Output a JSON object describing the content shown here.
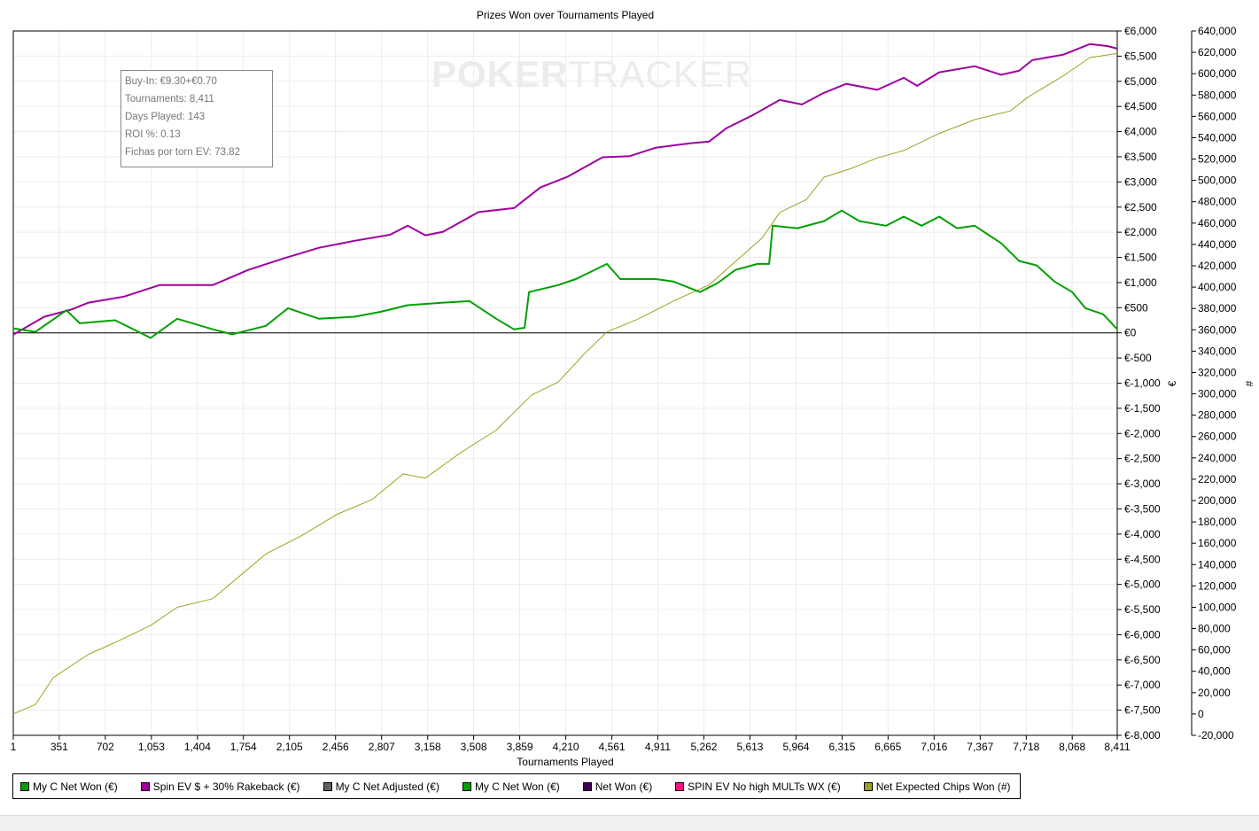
{
  "chart_data": {
    "type": "line",
    "title": "Prizes Won over Tournaments Played",
    "xlabel": "Tournaments Played",
    "ylabel_left": "€",
    "ylabel_right": "#",
    "xlim": [
      1,
      8411
    ],
    "ylim_left": [
      -8000,
      6000
    ],
    "ylim_right": [
      -20000,
      640000
    ],
    "grid": true,
    "legend_placement": "bottom",
    "x_ticks": [
      "1",
      "351",
      "702",
      "1,053",
      "1,404",
      "1,754",
      "2,105",
      "2,456",
      "2,807",
      "3,158",
      "3,508",
      "3,859",
      "4,210",
      "4,561",
      "4,911",
      "5,262",
      "5,613",
      "5,964",
      "6,315",
      "6,665",
      "7,016",
      "7,367",
      "7,718",
      "8,068",
      "8,411"
    ],
    "y_ticks_left": [
      "€6,000",
      "€5,500",
      "€5,000",
      "€4,500",
      "€4,000",
      "€3,500",
      "€3,000",
      "€2,500",
      "€2,000",
      "€1,500",
      "€1,000",
      "€500",
      "€0",
      "€-500",
      "€-1,000",
      "€-1,500",
      "€-2,000",
      "€-2,500",
      "€-3,000",
      "€-3,500",
      "€-4,000",
      "€-4,500",
      "€-5,000",
      "€-5,500",
      "€-6,000",
      "€-6,500",
      "€-7,000",
      "€-7,500",
      "€-8,000"
    ],
    "y_ticks_right": [
      "640,000",
      "620,000",
      "600,000",
      "580,000",
      "560,000",
      "540,000",
      "520,000",
      "500,000",
      "480,000",
      "460,000",
      "440,000",
      "420,000",
      "400,000",
      "380,000",
      "360,000",
      "340,000",
      "320,000",
      "300,000",
      "280,000",
      "260,000",
      "240,000",
      "220,000",
      "200,000",
      "180,000",
      "160,000",
      "140,000",
      "120,000",
      "100,000",
      "80,000",
      "60,000",
      "40,000",
      "20,000",
      "0",
      "-20,000"
    ],
    "series": [
      {
        "name": "My C Net Won (€)",
        "color": "#00a000",
        "axis": "left",
        "width": 2,
        "x": [
          1,
          170,
          406,
          507,
          777,
          1047,
          1250,
          1520,
          1668,
          1925,
          2094,
          2330,
          2600,
          2802,
          3005,
          3275,
          3477,
          3680,
          3815,
          3896,
          3930,
          4152,
          4287,
          4523,
          4625,
          4895,
          5030,
          5232,
          5367,
          5502,
          5671,
          5759,
          5786,
          5975,
          6177,
          6312,
          6447,
          6650,
          6785,
          6920,
          7055,
          7190,
          7325,
          7527,
          7663,
          7798,
          7933,
          8068,
          8169,
          8304,
          8411
        ],
        "y": [
          90,
          20,
          450,
          190,
          250,
          -100,
          280,
          70,
          -30,
          140,
          490,
          280,
          320,
          420,
          550,
          600,
          630,
          280,
          70,
          100,
          810,
          950,
          1070,
          1370,
          1070,
          1070,
          1020,
          810,
          990,
          1250,
          1370,
          1370,
          2130,
          2080,
          2220,
          2430,
          2220,
          2130,
          2310,
          2130,
          2310,
          2080,
          2130,
          1780,
          1430,
          1340,
          1020,
          810,
          490,
          370,
          70
        ]
      },
      {
        "name": "Spin EV $ + 30% Rakeback  (€)",
        "color": "#a000a0",
        "axis": "left",
        "width": 2,
        "x": [
          1,
          237,
          440,
          575,
          845,
          1115,
          1520,
          1790,
          2060,
          2330,
          2600,
          2870,
          3005,
          3140,
          3275,
          3545,
          3815,
          4017,
          4220,
          4490,
          4692,
          4895,
          5165,
          5300,
          5435,
          5637,
          5840,
          6009,
          6177,
          6347,
          6583,
          6785,
          6886,
          7055,
          7325,
          7527,
          7663,
          7764,
          8000,
          8202,
          8337,
          8411
        ],
        "y": [
          -35,
          320,
          460,
          600,
          720,
          950,
          950,
          1250,
          1480,
          1690,
          1830,
          1950,
          2130,
          1940,
          2010,
          2400,
          2480,
          2890,
          3100,
          3490,
          3510,
          3680,
          3770,
          3800,
          4070,
          4330,
          4630,
          4540,
          4770,
          4950,
          4830,
          5070,
          4910,
          5180,
          5300,
          5130,
          5210,
          5420,
          5530,
          5740,
          5700,
          5650
        ]
      },
      {
        "name": "My C Net Adjusted (€)",
        "color": "#606060",
        "axis": "left",
        "x": [],
        "y": []
      },
      {
        "name": "My C Net Won (€)",
        "color": "#00a000",
        "axis": "left",
        "x": [],
        "y": []
      },
      {
        "name": "Net Won (€)",
        "color": "#400050",
        "axis": "left",
        "x": [],
        "y": []
      },
      {
        "name": "SPIN EV No high MULTs WX (€)",
        "color": "#ff1080",
        "axis": "left",
        "x": [],
        "y": []
      },
      {
        "name": "Net Expected Chips Won (#)",
        "color": "#a0a020",
        "axis": "right",
        "width": 1,
        "x": [
          1,
          170,
          305,
          575,
          777,
          1047,
          1250,
          1520,
          1723,
          1925,
          2195,
          2465,
          2735,
          2971,
          3140,
          3410,
          3680,
          3950,
          4152,
          4355,
          4523,
          4760,
          5030,
          5300,
          5502,
          5705,
          5840,
          6042,
          6177,
          6380,
          6583,
          6785,
          7055,
          7325,
          7595,
          7730,
          8000,
          8202,
          8411
        ],
        "y": [
          0,
          9000,
          34000,
          56000,
          67000,
          83000,
          100000,
          108000,
          129000,
          150000,
          167000,
          187000,
          201000,
          225000,
          221000,
          245000,
          266000,
          299000,
          311000,
          338000,
          358000,
          370000,
          387000,
          402000,
          424000,
          446000,
          470000,
          482000,
          503000,
          511000,
          521000,
          528000,
          544000,
          557000,
          565000,
          578000,
          598000,
          615000,
          619000
        ]
      }
    ]
  },
  "info_box": {
    "lines": [
      "Buy-In: €9.30+€0.70",
      "Tournaments: 8,411",
      "Days Played: 143",
      "ROI %: 0.13",
      "Fichas por torn EV: 73.82"
    ]
  },
  "watermark": {
    "bold": "POKER",
    "light": "TRACKER"
  }
}
